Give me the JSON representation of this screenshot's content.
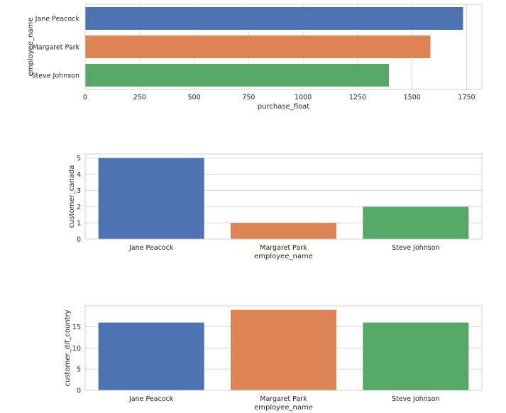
{
  "chart_data": [
    {
      "type": "bar",
      "orientation": "horizontal",
      "categories": [
        "Jane Peacock",
        "Margaret Park",
        "Steve Johnson"
      ],
      "values": [
        1733.8,
        1584.0,
        1393.9
      ],
      "colors": [
        "#4c72b0",
        "#dd8452",
        "#55a868"
      ],
      "xlabel": "purchase_float",
      "ylabel": "employee_name",
      "xlim": [
        0,
        1820
      ],
      "xticks": [
        0,
        250,
        500,
        750,
        1000,
        1250,
        1500,
        1750
      ],
      "grid": true
    },
    {
      "type": "bar",
      "orientation": "vertical",
      "categories": [
        "Jane Peacock",
        "Margaret Park",
        "Steve Johnson"
      ],
      "values": [
        5,
        1,
        2
      ],
      "colors": [
        "#4c72b0",
        "#dd8452",
        "#55a868"
      ],
      "xlabel": "employee_name",
      "ylabel": "customer_canada",
      "ylim": [
        0,
        5.25
      ],
      "yticks": [
        0,
        1,
        2,
        3,
        4,
        5
      ],
      "grid": true
    },
    {
      "type": "bar",
      "orientation": "vertical",
      "categories": [
        "Jane Peacock",
        "Margaret Park",
        "Steve Johnson"
      ],
      "values": [
        16,
        19,
        16
      ],
      "colors": [
        "#4c72b0",
        "#dd8452",
        "#55a868"
      ],
      "xlabel": "employee_name",
      "ylabel": "customer_dif_country",
      "ylim": [
        0,
        19.95
      ],
      "yticks": [
        0,
        5,
        10,
        15
      ],
      "grid": true
    }
  ]
}
